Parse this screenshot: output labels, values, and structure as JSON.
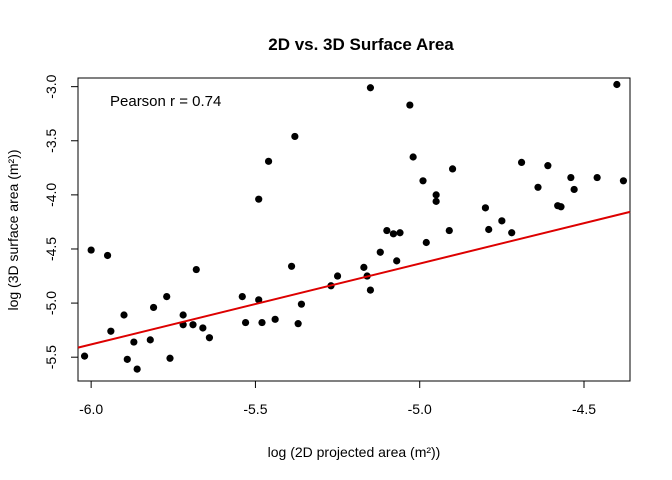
{
  "chart_data": {
    "type": "scatter",
    "title": "2D vs. 3D Surface Area",
    "xlabel": "log (2D projected area (m²))",
    "ylabel": "log (3D surface area (m²))",
    "xlim": [
      -6.04,
      -4.36
    ],
    "ylim": [
      -5.72,
      -2.92
    ],
    "xticks": [
      -6.0,
      -5.5,
      -5.0,
      -4.5
    ],
    "xtick_labels": [
      "-6.0",
      "-5.5",
      "-5.0",
      "-4.5"
    ],
    "yticks": [
      -5.5,
      -5.0,
      -4.5,
      -4.0,
      -3.5,
      -3.0
    ],
    "ytick_labels": [
      "-5.5",
      "-5.0",
      "-4.5",
      "-4.0",
      "-3.5",
      "-3.0"
    ],
    "annotation": "Pearson r = 0.74",
    "grid": false,
    "points_color": "#000000",
    "fit_line": {
      "color": "#dd0000",
      "intercept": -0.9,
      "slope": 0.747
    },
    "points": [
      [
        -6.02,
        -5.49
      ],
      [
        -6.0,
        -4.51
      ],
      [
        -5.95,
        -4.56
      ],
      [
        -5.94,
        -5.26
      ],
      [
        -5.9,
        -5.11
      ],
      [
        -5.89,
        -5.52
      ],
      [
        -5.87,
        -5.36
      ],
      [
        -5.86,
        -5.61
      ],
      [
        -5.82,
        -5.34
      ],
      [
        -5.81,
        -5.04
      ],
      [
        -5.77,
        -4.94
      ],
      [
        -5.76,
        -5.51
      ],
      [
        -5.72,
        -5.11
      ],
      [
        -5.72,
        -5.2
      ],
      [
        -5.69,
        -5.2
      ],
      [
        -5.68,
        -4.69
      ],
      [
        -5.66,
        -5.23
      ],
      [
        -5.64,
        -5.32
      ],
      [
        -5.54,
        -4.94
      ],
      [
        -5.53,
        -5.18
      ],
      [
        -5.49,
        -4.04
      ],
      [
        -5.49,
        -4.97
      ],
      [
        -5.48,
        -5.18
      ],
      [
        -5.46,
        -3.69
      ],
      [
        -5.44,
        -5.15
      ],
      [
        -5.39,
        -4.66
      ],
      [
        -5.38,
        -3.46
      ],
      [
        -5.37,
        -5.19
      ],
      [
        -5.36,
        -5.01
      ],
      [
        -5.27,
        -4.84
      ],
      [
        -5.25,
        -4.75
      ],
      [
        -5.17,
        -4.67
      ],
      [
        -5.16,
        -4.75
      ],
      [
        -5.15,
        -4.88
      ],
      [
        -5.15,
        -3.01
      ],
      [
        -5.12,
        -4.53
      ],
      [
        -5.1,
        -4.33
      ],
      [
        -5.08,
        -4.36
      ],
      [
        -5.07,
        -4.61
      ],
      [
        -5.06,
        -4.35
      ],
      [
        -5.03,
        -3.17
      ],
      [
        -5.02,
        -3.65
      ],
      [
        -4.99,
        -3.87
      ],
      [
        -4.98,
        -4.44
      ],
      [
        -4.95,
        -4.0
      ],
      [
        -4.95,
        -4.06
      ],
      [
        -4.91,
        -4.33
      ],
      [
        -4.9,
        -3.76
      ],
      [
        -4.8,
        -4.12
      ],
      [
        -4.79,
        -4.32
      ],
      [
        -4.75,
        -4.24
      ],
      [
        -4.72,
        -4.35
      ],
      [
        -4.69,
        -3.7
      ],
      [
        -4.64,
        -3.93
      ],
      [
        -4.61,
        -3.73
      ],
      [
        -4.58,
        -4.1
      ],
      [
        -4.57,
        -4.11
      ],
      [
        -4.54,
        -3.84
      ],
      [
        -4.53,
        -3.95
      ],
      [
        -4.46,
        -3.84
      ],
      [
        -4.4,
        -2.98
      ],
      [
        -4.38,
        -3.87
      ]
    ]
  }
}
